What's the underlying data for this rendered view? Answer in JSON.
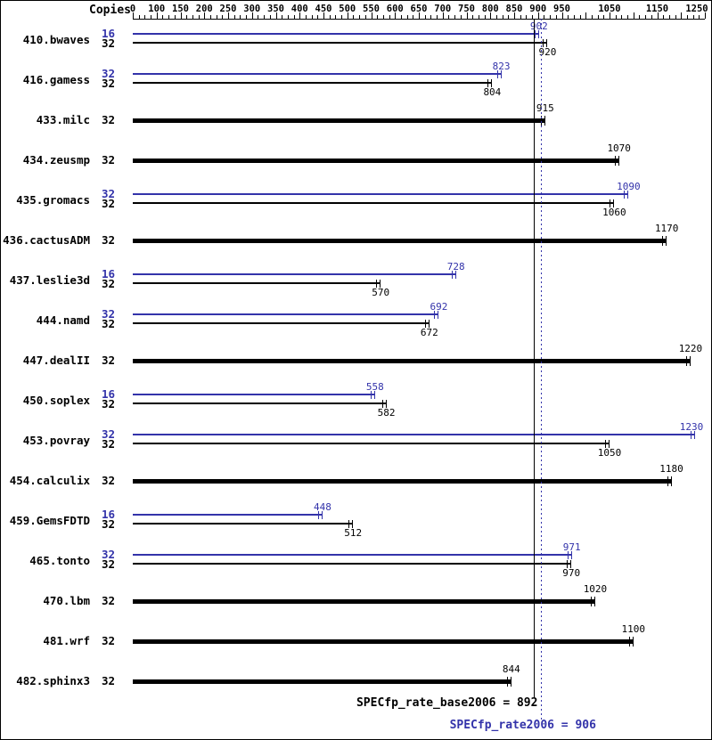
{
  "colors": {
    "peak": "#3333aa",
    "base": "#000000",
    "background": "#ffffff"
  },
  "header": {
    "copies_label": "Copies"
  },
  "axis": {
    "min": 0,
    "first_major": 100,
    "step": 50,
    "max": 1250,
    "labeled_ticks": [
      0,
      100,
      150,
      200,
      250,
      300,
      350,
      400,
      450,
      500,
      550,
      600,
      650,
      700,
      750,
      800,
      850,
      900,
      950,
      1050,
      1150,
      1250
    ],
    "unlabeled_major_ticks": [
      1000,
      1100,
      1200
    ]
  },
  "chart_data": {
    "type": "bar",
    "orientation": "horizontal",
    "xlim": [
      0,
      1250
    ],
    "legend": [
      {
        "name": "peak",
        "color": "#3333aa"
      },
      {
        "name": "base",
        "color": "#000000"
      }
    ],
    "benchmarks": [
      {
        "name": "410.bwaves",
        "bars": [
          {
            "series": "peak",
            "copies": "16",
            "value": 902
          },
          {
            "series": "base",
            "copies": "32",
            "value": 920
          }
        ]
      },
      {
        "name": "416.gamess",
        "bars": [
          {
            "series": "peak",
            "copies": "32",
            "value": 823
          },
          {
            "series": "base",
            "copies": "32",
            "value": 804
          }
        ]
      },
      {
        "name": "433.milc",
        "bars": [
          {
            "series": "base",
            "copies": "32",
            "value": 915
          }
        ]
      },
      {
        "name": "434.zeusmp",
        "bars": [
          {
            "series": "base",
            "copies": "32",
            "value": 1070
          }
        ]
      },
      {
        "name": "435.gromacs",
        "bars": [
          {
            "series": "peak",
            "copies": "32",
            "value": 1090
          },
          {
            "series": "base",
            "copies": "32",
            "value": 1060
          }
        ]
      },
      {
        "name": "436.cactusADM",
        "bars": [
          {
            "series": "base",
            "copies": "32",
            "value": 1170
          }
        ]
      },
      {
        "name": "437.leslie3d",
        "bars": [
          {
            "series": "peak",
            "copies": "16",
            "value": 728
          },
          {
            "series": "base",
            "copies": "32",
            "value": 570
          }
        ]
      },
      {
        "name": "444.namd",
        "bars": [
          {
            "series": "peak",
            "copies": "32",
            "value": 692
          },
          {
            "series": "base",
            "copies": "32",
            "value": 672
          }
        ]
      },
      {
        "name": "447.dealII",
        "bars": [
          {
            "series": "base",
            "copies": "32",
            "value": 1220
          }
        ]
      },
      {
        "name": "450.soplex",
        "bars": [
          {
            "series": "peak",
            "copies": "16",
            "value": 558
          },
          {
            "series": "base",
            "copies": "32",
            "value": 582
          }
        ]
      },
      {
        "name": "453.povray",
        "bars": [
          {
            "series": "peak",
            "copies": "32",
            "value": 1230
          },
          {
            "series": "base",
            "copies": "32",
            "value": 1050
          }
        ]
      },
      {
        "name": "454.calculix",
        "bars": [
          {
            "series": "base",
            "copies": "32",
            "value": 1180
          }
        ]
      },
      {
        "name": "459.GemsFDTD",
        "bars": [
          {
            "series": "peak",
            "copies": "16",
            "value": 448
          },
          {
            "series": "base",
            "copies": "32",
            "value": 512
          }
        ]
      },
      {
        "name": "465.tonto",
        "bars": [
          {
            "series": "peak",
            "copies": "32",
            "value": 971
          },
          {
            "series": "base",
            "copies": "32",
            "value": 970
          }
        ]
      },
      {
        "name": "470.lbm",
        "bars": [
          {
            "series": "base",
            "copies": "32",
            "value": 1020
          }
        ]
      },
      {
        "name": "481.wrf",
        "bars": [
          {
            "series": "base",
            "copies": "32",
            "value": 1100
          }
        ]
      },
      {
        "name": "482.sphinx3",
        "bars": [
          {
            "series": "base",
            "copies": "32",
            "value": 844
          }
        ]
      }
    ],
    "reference_lines": [
      {
        "name": "base_mean",
        "value": 892,
        "style": "solid",
        "color": "#000000",
        "label": "SPECfp_rate_base2006 = 892"
      },
      {
        "name": "peak_mean",
        "value": 906,
        "style": "dotted",
        "color": "#3333aa",
        "label": "SPECfp_rate2006 = 906"
      }
    ]
  },
  "footer": {
    "base_label": "SPECfp_rate_base2006 = 892",
    "peak_label": "SPECfp_rate2006 = 906"
  }
}
